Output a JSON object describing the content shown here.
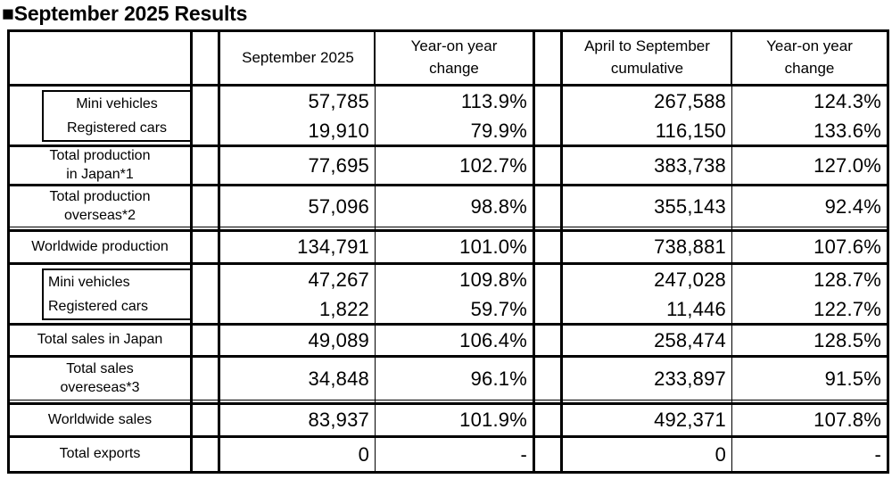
{
  "title": "■September 2025 Results",
  "table": {
    "headers": {
      "sept": "September 2025",
      "yoy1": "Year-on year\nchange",
      "cum": "April to September\ncumulative",
      "yoy2": "Year-on year\nchange"
    },
    "rows": [
      {
        "label": "Mini vehicles",
        "sept": "57,785",
        "yoy1": "113.9%",
        "cum": "267,588",
        "yoy2": "124.3%"
      },
      {
        "label": "Registered cars",
        "sept": "19,910",
        "yoy1": "79.9%",
        "cum": "116,150",
        "yoy2": "133.6%"
      },
      {
        "label": "Total production\nin Japan*1",
        "sept": "77,695",
        "yoy1": "102.7%",
        "cum": "383,738",
        "yoy2": "127.0%"
      },
      {
        "label": "Total production\noverseas*2",
        "sept": "57,096",
        "yoy1": "98.8%",
        "cum": "355,143",
        "yoy2": "92.4%"
      },
      {
        "label": "Worldwide production",
        "sept": "134,791",
        "yoy1": "101.0%",
        "cum": "738,881",
        "yoy2": "107.6%"
      },
      {
        "label": "Mini vehicles",
        "sept": "47,267",
        "yoy1": "109.8%",
        "cum": "247,028",
        "yoy2": "128.7%"
      },
      {
        "label": "Registered cars",
        "sept": "1,822",
        "yoy1": "59.7%",
        "cum": "11,446",
        "yoy2": "122.7%"
      },
      {
        "label": "Total sales in Japan",
        "sept": "49,089",
        "yoy1": "106.4%",
        "cum": "258,474",
        "yoy2": "128.5%"
      },
      {
        "label": "Total sales\novereseas*3",
        "sept": "34,848",
        "yoy1": "96.1%",
        "cum": "233,897",
        "yoy2": "91.5%"
      },
      {
        "label": "Worldwide sales",
        "sept": "83,937",
        "yoy1": "101.9%",
        "cum": "492,371",
        "yoy2": "107.8%"
      },
      {
        "label": "Total exports",
        "sept": "0",
        "yoy1": "-",
        "cum": "0",
        "yoy2": "-"
      }
    ]
  }
}
